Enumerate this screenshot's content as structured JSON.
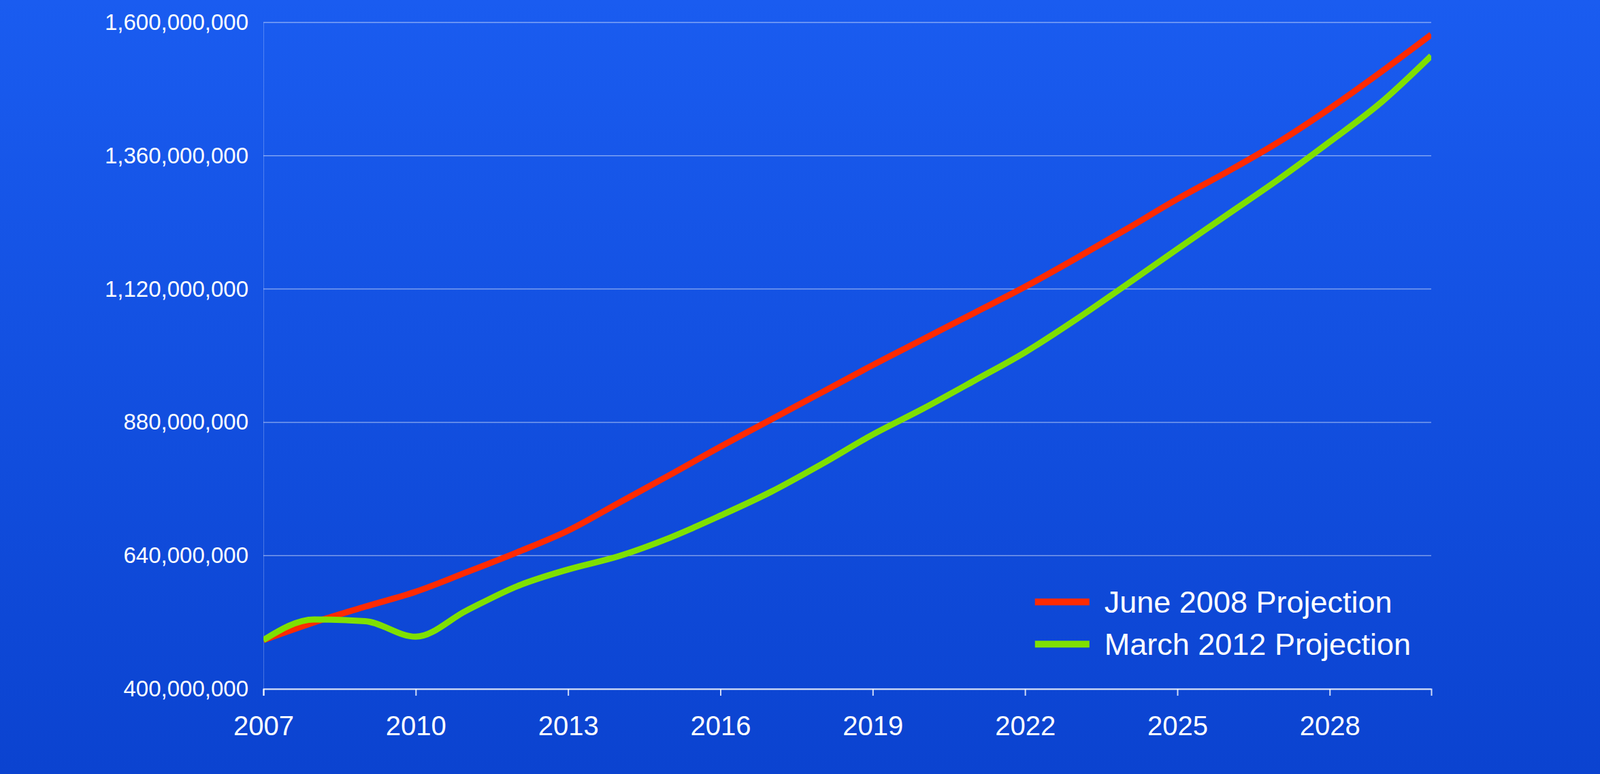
{
  "chart_data": {
    "type": "line",
    "x": [
      2007,
      2008,
      2009,
      2010,
      2011,
      2012,
      2013,
      2014,
      2015,
      2016,
      2017,
      2018,
      2019,
      2020,
      2021,
      2022,
      2023,
      2024,
      2025,
      2026,
      2027,
      2028,
      2029,
      2030
    ],
    "series": [
      {
        "name": "June 2008 Projection",
        "color": "#ff2a00",
        "values": [
          488000000,
          520000000,
          548000000,
          575000000,
          610000000,
          646000000,
          685000000,
          735000000,
          785000000,
          836000000,
          885000000,
          934000000,
          983000000,
          1030000000,
          1077000000,
          1124000000,
          1175000000,
          1228000000,
          1282000000,
          1332000000,
          1385000000,
          1445000000,
          1510000000,
          1578000000
        ]
      },
      {
        "name": "March 2012 Projection",
        "color": "#7fe000",
        "values": [
          488000000,
          525000000,
          522000000,
          494000000,
          541000000,
          585000000,
          615000000,
          639000000,
          672000000,
          712000000,
          755000000,
          805000000,
          858000000,
          905000000,
          955000000,
          1006000000,
          1065000000,
          1128000000,
          1192000000,
          1255000000,
          1318000000,
          1385000000,
          1455000000,
          1540000000
        ]
      }
    ],
    "xlim": [
      2007,
      2030
    ],
    "xticks": [
      2007,
      2010,
      2013,
      2016,
      2019,
      2022,
      2025,
      2028
    ],
    "ylim": [
      400000000,
      1600000000
    ],
    "yticks": [
      {
        "value": 400000000,
        "label": "400,000,000"
      },
      {
        "value": 640000000,
        "label": "640,000,000"
      },
      {
        "value": 880000000,
        "label": "880,000,000"
      },
      {
        "value": 1120000000,
        "label": "1,120,000,000"
      },
      {
        "value": 1360000000,
        "label": "1,360,000,000"
      },
      {
        "value": 1600000000,
        "label": "1,600,000,000"
      }
    ],
    "grid": true,
    "legend": "lower right"
  }
}
